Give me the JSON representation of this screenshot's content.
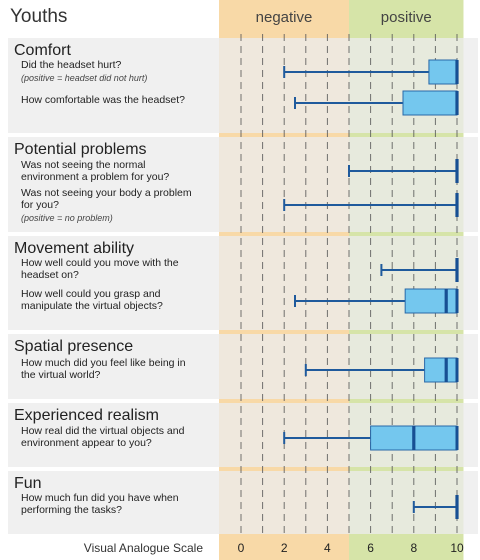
{
  "chart_data": {
    "type": "boxplot",
    "title": "Youths",
    "xlabel": "Visual Analogue Scale",
    "xlim": [
      -1.2,
      10.3
    ],
    "xticks": [
      0,
      2,
      4,
      6,
      8,
      10
    ],
    "regions": [
      {
        "label": "negative",
        "from": -1.2,
        "to": 5,
        "color": "#f8d9a7"
      },
      {
        "label": "positive",
        "from": 5,
        "to": 10.3,
        "color": "#d6e4a8"
      }
    ],
    "groups": [
      {
        "name": "Comfort",
        "items": [
          {
            "question_lines": [
              "Did the headset hurt?"
            ],
            "note": "(positive = headset did not hurt)",
            "min": 2,
            "q1": 8.7,
            "median": 10,
            "q3": 10,
            "max": 10
          },
          {
            "question_lines": [
              "How comfortable was the headset?"
            ],
            "min": 2.5,
            "q1": 7.5,
            "median": 10,
            "q3": 10,
            "max": 10
          }
        ]
      },
      {
        "name": "Potential problems",
        "items": [
          {
            "question_lines": [
              "Was not seeing the normal",
              "environment a problem for you?"
            ],
            "min": 5,
            "q1": 10,
            "median": 10,
            "q3": 10,
            "max": 10
          },
          {
            "question_lines": [
              "Was not seeing your body a problem",
              "for you?"
            ],
            "note": "(positive = no problem)",
            "min": 2,
            "q1": 10,
            "median": 10,
            "q3": 10,
            "max": 10
          }
        ]
      },
      {
        "name": "Movement ability",
        "items": [
          {
            "question_lines": [
              "How well could you move with the",
              "headset on?"
            ],
            "min": 6.5,
            "q1": 10,
            "median": 10,
            "q3": 10,
            "max": 10
          },
          {
            "question_lines": [
              "How well could you grasp and",
              "manipulate the virtual objects?"
            ],
            "min": 2.5,
            "q1": 7.6,
            "median": 9.5,
            "q3": 10,
            "max": 10
          }
        ]
      },
      {
        "name": "Spatial presence",
        "items": [
          {
            "question_lines": [
              "How much did you feel like being in",
              "the virtual world?"
            ],
            "min": 3,
            "q1": 8.5,
            "median": 9.5,
            "q3": 10,
            "max": 10
          }
        ]
      },
      {
        "name": "Experienced realism",
        "items": [
          {
            "question_lines": [
              "How real did the virtual objects and",
              "environment appear to you?"
            ],
            "min": 2,
            "q1": 6,
            "median": 8,
            "q3": 10,
            "max": 10
          }
        ]
      },
      {
        "name": "Fun",
        "items": [
          {
            "question_lines": [
              "How much fun did you have when",
              "performing the tasks?"
            ],
            "min": 8,
            "q1": 10,
            "median": 10,
            "q3": 10,
            "max": 10
          }
        ]
      }
    ],
    "colors": {
      "panel": "#ececec",
      "box_fill": "#74c7ee",
      "box_stroke": "#2868a8",
      "median": "#174f93",
      "whisker": "#1f5a9c",
      "grid": "#5a5a5a",
      "text": "#222222",
      "note": "#444444"
    }
  }
}
